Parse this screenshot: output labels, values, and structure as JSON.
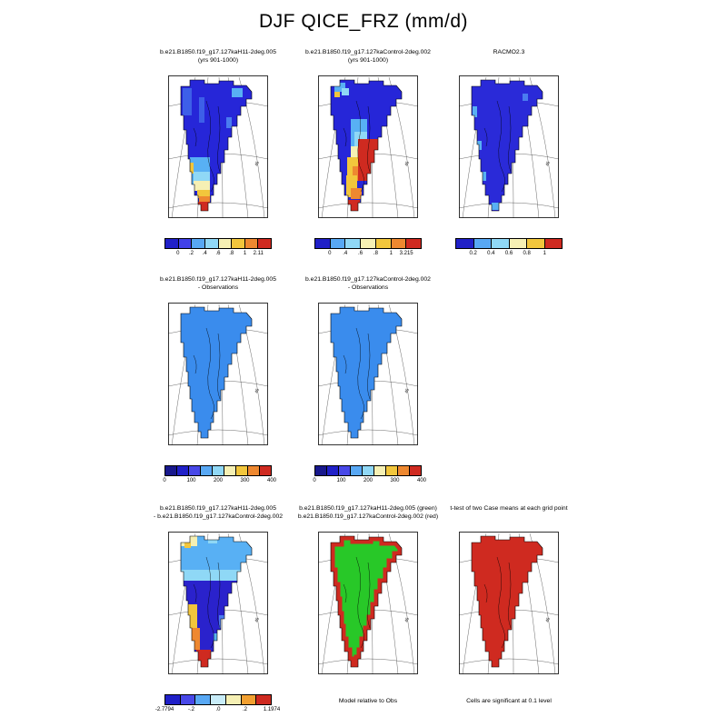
{
  "title": "DJF QICE_FRZ (mm/d)",
  "map": {
    "graticule_label": "45"
  },
  "rows": [
    {
      "panels": [
        {
          "title1": "b.e21.B1850.f19_g17.127kaH11-2deg.005",
          "title2": "(yrs 901-1000)",
          "colorbar": {
            "colors": [
              "#2020c8",
              "#4040e8",
              "#58a8f4",
              "#90d8f6",
              "#f6f0b4",
              "#f2c63c",
              "#ee8830",
              "#cf2a20"
            ],
            "labels": [
              "0",
              ".2",
              ".4",
              ".6",
              ".8",
              "1",
              "2.11"
            ]
          }
        },
        {
          "title1": "b.e21.B1850.f19_g17.127kaControl-2deg.002",
          "title2": "(yrs 901-1000)",
          "colorbar": {
            "colors": [
              "#2020c8",
              "#58a8f4",
              "#90d8f6",
              "#f6f0b4",
              "#f2c63c",
              "#ee8830",
              "#cf2a20"
            ],
            "labels": [
              "0",
              ".4",
              ".6",
              ".8",
              "1",
              "3.215"
            ]
          }
        },
        {
          "title1": "RACMO2.3",
          "title2": "",
          "colorbar": {
            "colors": [
              "#2020c8",
              "#58a8f4",
              "#90d8f6",
              "#f6f0b4",
              "#f2c63c",
              "#cf2a20"
            ],
            "labels": [
              "0.2",
              "0.4",
              "0.6",
              "0.8",
              "1"
            ]
          }
        }
      ]
    },
    {
      "panels": [
        {
          "title1": "b.e21.B1850.f19_g17.127kaH11-2deg.005",
          "title2": "- Observations",
          "colorbar": {
            "colors": [
              "#18188c",
              "#2020c8",
              "#4848e8",
              "#58a8f4",
              "#90d8f6",
              "#f6f0b4",
              "#f2c63c",
              "#ee8830",
              "#cf2a20"
            ],
            "labels": [
              "0",
              "100",
              "200",
              "300",
              "400"
            ]
          }
        },
        {
          "title1": "b.e21.B1850.f19_g17.127kaControl-2deg.002",
          "title2": "- Observations",
          "colorbar": {
            "colors": [
              "#18188c",
              "#2020c8",
              "#4848e8",
              "#58a8f4",
              "#90d8f6",
              "#f6f0b4",
              "#f2c63c",
              "#ee8830",
              "#cf2a20"
            ],
            "labels": [
              "0",
              "100",
              "200",
              "300",
              "400"
            ]
          }
        }
      ]
    },
    {
      "panels": [
        {
          "title1": "b.e21.B1850.f19_g17.127kaH11-2deg.005",
          "title2": "- b.e21.B1850.f19_g17.127kaControl-2deg.002",
          "colorbar": {
            "colors": [
              "#2020c8",
              "#4848e8",
              "#58a8f4",
              "#c8ecf8",
              "#f6f0b4",
              "#f2a030",
              "#cf2a20"
            ],
            "labels": [
              "-2.7794",
              "-.2",
              ".0",
              ".2",
              "1.1974"
            ]
          }
        },
        {
          "title1": "b.e21.B1850.f19_g17.127kaH11-2deg.005 (green)",
          "title2": "b.e21.B1850.f19_g17.127kaControl-2deg.002 (red)",
          "caption": "Model relative to Obs"
        },
        {
          "title1": "t-test of two Case means at each grid point",
          "title2": "",
          "caption": "Cells are significant at 0.1 level"
        }
      ]
    }
  ],
  "palette": {
    "deep_blue": "#2626d8",
    "royal_blue": "#4848e8",
    "light_blue": "#58b0f4",
    "cyan": "#8fd8f6",
    "pale_yellow": "#f6f0b4",
    "yellow": "#f2c63c",
    "orange": "#ee8830",
    "red": "#cf2a20",
    "green": "#28c828",
    "obs_diff_blue": "#3a8ced"
  },
  "chart_data": {
    "type": "heatmap",
    "title": "DJF QICE_FRZ (mm/d)",
    "region": "Greenland ice sheet, polar stereographic map panels",
    "panels": [
      {
        "row": 1,
        "col": 1,
        "label": "b.e21.B1850.f19_g17.127kaH11-2deg.005 (yrs 901-1000)",
        "units": "mm/d",
        "colorbar_ticks": [
          "0",
          ".2",
          ".4",
          ".6",
          ".8",
          "1",
          "2.11"
        ],
        "pattern": "low values (blue) over most of the ice sheet; 0.4-1+ (pale yellow to red) at the southern tip"
      },
      {
        "row": 1,
        "col": 2,
        "label": "b.e21.B1850.f19_g17.127kaControl-2deg.002 (yrs 901-1000)",
        "units": "mm/d",
        "colorbar_ticks": [
          "0",
          ".4",
          ".6",
          ".8",
          "1",
          "3.215"
        ],
        "pattern": "low in the north; high values (yellow-orange-red, max 3.215) in central-south and southeast"
      },
      {
        "row": 1,
        "col": 3,
        "label": "RACMO2.3",
        "units": "mm/d",
        "colorbar_ticks": [
          "0.2",
          "0.4",
          "0.6",
          "0.8",
          "1"
        ],
        "pattern": "uniformly low (deep blue) everywhere"
      },
      {
        "row": 2,
        "col": 1,
        "label": "b.e21.B1850.f19_g17.127kaH11-2deg.005 - Observations",
        "colorbar_ticks": [
          "0",
          "100",
          "200",
          "300",
          "400"
        ],
        "pattern": "uniform low difference (flat medium blue)"
      },
      {
        "row": 2,
        "col": 2,
        "label": "b.e21.B1850.f19_g17.127kaControl-2deg.002 - Observations",
        "colorbar_ticks": [
          "0",
          "100",
          "200",
          "300",
          "400"
        ],
        "pattern": "uniform low difference (flat medium blue)"
      },
      {
        "row": 3,
        "col": 1,
        "label": "b.e21.B1850.f19_g17.127kaH11-2deg.005 - b.e21.B1850.f19_g17.127kaControl-2deg.002",
        "colorbar_ticks": [
          "-2.7794",
          "-.2",
          ".0",
          ".2",
          "1.1974"
        ],
        "pattern": "light blue/pale yellow in north, deep blue (negative) center, yellow-orange west margin, red at southern tip"
      },
      {
        "row": 3,
        "col": 2,
        "label": "Model relative to Obs",
        "pattern": "green interior (H11 case closer to obs), red margin cells (control case closer to obs)"
      },
      {
        "row": 3,
        "col": 3,
        "label": "t-test of two Case means at each grid point",
        "pattern": "entire ice sheet red; cells are significant at 0.1 level"
      }
    ]
  }
}
